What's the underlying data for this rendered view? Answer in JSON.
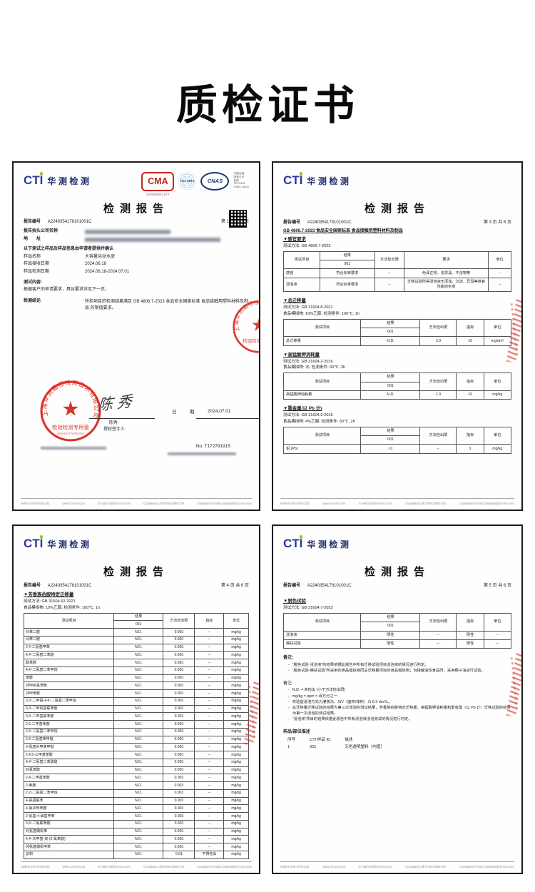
{
  "page_title": "质检证书",
  "brand": {
    "cti_short": "CTI",
    "cti_cn": "华测检测",
    "report_title": "检测报告",
    "cma_label": "CMA",
    "cma_number": "210900341277",
    "ilac_label": "ilac-MRA",
    "cnas_label": "CNAS",
    "accreditation_lines": [
      "中国合格",
      "国家认可",
      "检测",
      "TESTING",
      "CNAS L5541"
    ]
  },
  "footer": {
    "items": [
      "Hotline:400-6788-333",
      "www.cti-cert.com",
      "E-mail:info@cti-cert.com",
      "Complaint call:0755-33681700",
      "Complaint E-mail:complaint@cti-cert.com"
    ]
  },
  "report1": {
    "report_no_label": "报告编号",
    "report_no": "A2240354178101001C",
    "page_info": "第 1 页 共 6 页",
    "company_label": "报告抬头公司名称",
    "address_label": "地　　址",
    "confirm_line": "以下测试之样品及样品信息由申请者提供并确认",
    "fields": [
      {
        "label": "样品名称",
        "value": "大容量运动水壶"
      },
      {
        "label": "样品接收日期",
        "value": "2024.06.18"
      },
      {
        "label": "样品检测日期",
        "value": "2024.06.18-2024.07.01"
      }
    ],
    "test_content_label": "测试内容:",
    "test_content": "根据客户的申请要求，具体要求详见下一页。",
    "conclusion_label": "检测结论",
    "conclusion": "所检项目的检测结果满足 GB 4806.7-2023 食品安全国家标准 食品接触用塑料材料及制品 的限值要求。",
    "stamp": {
      "ring_text": "上海华测品标检测技术有限公司",
      "seal_text": "检验检测专用章",
      "seal_sub": "Inspection & Testing Seal"
    },
    "signer": "陈秀",
    "signer_role": "授权签字人",
    "date_label": "日　期",
    "date_value": "2024.07.01",
    "cert_no": "No. T172791915"
  },
  "report2": {
    "report_no_label": "报告编号",
    "report_no": "A2240354178101001C",
    "page_info": "第 3 页 共 6 页",
    "standard_title": "GB 4806.7-2023 食品安全国家标准 食品接触用塑料材料及制品",
    "sections": [
      {
        "title": "▼感官要求",
        "method": "测试方法: GB 4806.7-2023",
        "table": {
          "cols": [
            "测试项目",
            "结果",
            "方法检出限",
            "要求",
            "单位"
          ],
          "sub": "001",
          "rows": [
            [
              "感官",
              "符合标准要求",
              "--",
              "色泽正常，无异臭、不洁物等",
              "--"
            ],
            [
              "浸泡液",
              "符合标准要求",
              "--",
              "迁移试验所得浸泡液无浑浊、沉淀、异臭等感官性能的劣变",
              "--"
            ]
          ]
        }
      },
      {
        "title": "▼总迁移量",
        "method": "测试方法: GB 31604.8-2021",
        "condition": "食品模拟物: 10%乙醇; 检测条件: 100℃, 1h",
        "table": {
          "cols": [
            "测试项目",
            "结果",
            "方法检出限",
            "指标",
            "单位"
          ],
          "sub": "001",
          "rows": [
            [
              "总迁移量",
              "N.D.",
              "3.0",
              "10",
              "mg/dm²"
            ]
          ]
        }
      },
      {
        "title": "▼高锰酸钾消耗量",
        "method": "测试方法: GB 31604.2-2016",
        "condition": "食品模拟物: 水; 检测条件: 60℃, 2h",
        "table": {
          "cols": [
            "测试项目",
            "结果",
            "方法检出限",
            "指标",
            "单位"
          ],
          "sub": "001",
          "rows": [
            [
              "高锰酸钾消耗量",
              "N.D.",
              "1.0",
              "10",
              "mg/kg"
            ]
          ]
        }
      },
      {
        "title": "▼重金属(以 Pb 计)",
        "method": "测试方法: GB 31604.9-2016",
        "condition": "食品模拟物: 4%乙酸; 检测条件: 60℃, 2h",
        "table": {
          "cols": [
            "测试项目",
            "结果",
            "方法检出限",
            "指标",
            "单位"
          ],
          "sub": "001",
          "rows": [
            [
              "铅 (Pb)",
              "<1",
              "--",
              "1",
              "mg/kg"
            ]
          ]
        }
      }
    ]
  },
  "report3": {
    "report_no_label": "报告编号",
    "report_no": "A2240354178101001C",
    "page_info": "第 4 页 共 6 页",
    "section": {
      "title": "▼芳香族伯胺特定迁移量",
      "method": "测试方法: GB 31604.52-2021",
      "condition": "食品模拟物: 10%乙醇; 检测条件: 100℃, 1h",
      "table": {
        "cols": [
          "测试项目",
          "结果",
          "方法检出限",
          "指标",
          "单位"
        ],
        "sub": "001",
        "rows": [
          [
            "对苯二胺",
            "N.D.",
            "0.003",
            "--",
            "mg/kg"
          ],
          [
            "间苯二胺",
            "N.D.",
            "0.003",
            "--",
            "mg/kg"
          ],
          [
            "2,4-二氨基甲苯",
            "N.D.",
            "0.003",
            "--",
            "mg/kg"
          ],
          [
            "4,4′-二氨基二苯醚",
            "N.D.",
            "0.003",
            "--",
            "mg/kg"
          ],
          [
            "联苯胺",
            "N.D.",
            "0.003",
            "--",
            "mg/kg"
          ],
          [
            "4,4′-二氨基二苯甲烷",
            "N.D.",
            "0.003",
            "--",
            "mg/kg"
          ],
          [
            "苯胺",
            "N.D.",
            "0.003",
            "--",
            "mg/kg"
          ],
          [
            "邻甲氧基苯胺",
            "N.D.",
            "0.003",
            "--",
            "mg/kg"
          ],
          [
            "邻甲苯胺",
            "N.D.",
            "0.003",
            "--",
            "mg/kg"
          ],
          [
            "3,3′-二甲基-4,4′-二氨基二苯甲烷",
            "N.D.",
            "0.003",
            "--",
            "mg/kg"
          ],
          [
            "3,3′-二甲氧基联苯胺",
            "N.D.",
            "0.003",
            "--",
            "mg/kg"
          ],
          [
            "3,3′-二甲基联苯胺",
            "N.D.",
            "0.003",
            "--",
            "mg/kg"
          ],
          [
            "2,6-二甲基苯胺",
            "N.D.",
            "0.003",
            "--",
            "mg/kg"
          ],
          [
            "2,4′-二氨基二苯甲烷",
            "N.D.",
            "0.003",
            "--",
            "mg/kg"
          ],
          [
            "2,4-二氨基苯甲醚",
            "N.D.",
            "0.003",
            "--",
            "mg/kg"
          ],
          [
            "3-氨基对甲苯甲醚",
            "N.D.",
            "0.003",
            "--",
            "mg/kg"
          ],
          [
            "2,4,5-三甲基苯胺",
            "N.D.",
            "0.003",
            "--",
            "mg/kg"
          ],
          [
            "4,4′-二氨基二苯硫醚",
            "N.D.",
            "0.003",
            "--",
            "mg/kg"
          ],
          [
            "对氯苯胺",
            "N.D.",
            "0.003",
            "--",
            "mg/kg"
          ],
          [
            "2,4-二甲基苯胺",
            "N.D.",
            "0.003",
            "--",
            "mg/kg"
          ],
          [
            "2-萘胺",
            "N.D.",
            "0.003",
            "--",
            "mg/kg"
          ],
          [
            "2,2′-二氨基二苯甲烷",
            "N.D.",
            "0.003",
            "--",
            "mg/kg"
          ],
          [
            "4-氨基联苯",
            "N.D.",
            "0.003",
            "--",
            "mg/kg"
          ],
          [
            "4-氯邻甲苯胺",
            "N.D.",
            "0.003",
            "--",
            "mg/kg"
          ],
          [
            "2-氨基-4-硝基甲苯",
            "N.D.",
            "0.003",
            "--",
            "mg/kg"
          ],
          [
            "3,3′-二氯联苯胺",
            "N.D.",
            "0.003",
            "--",
            "mg/kg"
          ],
          [
            "对氨基偶氮苯",
            "N.D.",
            "0.003",
            "--",
            "mg/kg"
          ],
          [
            "4,4′-次甲基-双-(2-氯苯胺)",
            "N.D.",
            "0.003",
            "--",
            "mg/kg"
          ],
          [
            "邻氨基偶氮甲苯",
            "N.D.",
            "0.003",
            "--",
            "mg/kg"
          ],
          [
            "总和",
            "N.D.",
            "0.01",
            "不得检出",
            "mg/kg"
          ]
        ]
      }
    }
  },
  "report4": {
    "report_no_label": "报告编号",
    "report_no": "A2240354178101001C",
    "page_info": "第 5 页 共 6 页",
    "section": {
      "title": "▼脱色试验",
      "method": "测试方法: GB 31604.7-2023",
      "table": {
        "cols": [
          "测试项目",
          "结果",
          "方法检出限",
          "指标",
          "单位"
        ],
        "sub": "001",
        "rows": [
          [
            "浸泡液",
            "阴性",
            "--",
            "阴性",
            "--"
          ],
          [
            "擦拭试验",
            "阴性",
            "--",
            "阴性",
            "--"
          ]
        ]
      }
    },
    "notes1_label": "备注：",
    "notes1": [
      "“脱色试验-浸泡液”的结果依据此报告中所有迁移试验项目浸泡液的情况进行判定。",
      "“脱色试验-擦拭试验”所采用的食品模拟物同总迁移量项目的食品模拟物；当接触油性食品时，采用椰子油进行试验。"
    ],
    "notes2_label": "备注:",
    "notes2": [
      "N.D. = 未检出 (小于方法检出限)",
      "mg/kg = ppm = 百万分之一",
      "实验室浸泡方式为灌装法，S/V（面积/体积）为 6.3 dm²/L。",
      "总迁移量迁移试验的结果为第三次浸泡的测试结果，芳香族伯胺特定迁移量、高锰酸钾消耗量和重金属（以 Pb 计）迁移试验的结果为第一次浸泡的测试结果。",
      "“浸泡液”项目的结果依据此报告中所有浸泡液浸泡测试的情况进行判定。"
    ],
    "sample_desc_title": "样品/部位描述",
    "sample_desc": {
      "cols": [
        "序号",
        "CTI 样品 ID",
        "描述"
      ],
      "rows": [
        [
          "1",
          "001",
          "无色透明塑料（内壁）"
        ]
      ]
    }
  }
}
